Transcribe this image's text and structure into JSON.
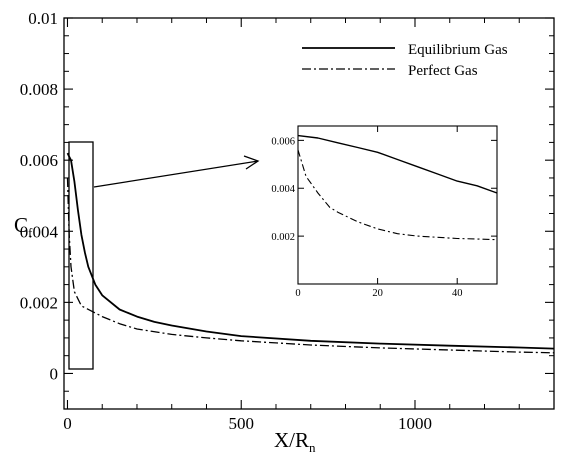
{
  "chart_data": {
    "type": "line",
    "xlabel": {
      "main": "X/R",
      "sub": "n"
    },
    "ylabel": {
      "main": "C",
      "sub": "f"
    },
    "xlim": [
      -10,
      1400
    ],
    "ylim": [
      -0.001,
      0.01
    ],
    "x_ticks": [
      0,
      500,
      1000
    ],
    "x_tick_labels": [
      "0",
      "500",
      "1000"
    ],
    "y_ticks": [
      0,
      0.002,
      0.004,
      0.006,
      0.008,
      0.01
    ],
    "y_tick_labels": [
      "0",
      "0.002",
      "0.004",
      "0.006",
      "0.008",
      "0.01"
    ],
    "grid": false,
    "legend_position": "top-right",
    "series": [
      {
        "name": "Equilibrium Gas",
        "style": "solid",
        "x": [
          0,
          5,
          10,
          20,
          30,
          40,
          50,
          60,
          80,
          100,
          150,
          200,
          250,
          300,
          400,
          500,
          700,
          900,
          1100,
          1300,
          1400
        ],
        "y": [
          0.0062,
          0.0061,
          0.006,
          0.0054,
          0.0046,
          0.0039,
          0.0034,
          0.003,
          0.0025,
          0.0022,
          0.0018,
          0.0016,
          0.00145,
          0.00135,
          0.00118,
          0.00105,
          0.00092,
          0.00084,
          0.00078,
          0.00073,
          0.0007
        ]
      },
      {
        "name": "Perfect Gas",
        "style": "dash-dot",
        "x": [
          0,
          2,
          5,
          10,
          20,
          30,
          40,
          50,
          80,
          100,
          150,
          200,
          300,
          400,
          500,
          700,
          900,
          1100,
          1300,
          1400
        ],
        "y": [
          0.0055,
          0.0048,
          0.0039,
          0.003,
          0.0023,
          0.0021,
          0.0019,
          0.00185,
          0.0017,
          0.0016,
          0.0014,
          0.00125,
          0.0011,
          0.001,
          0.00092,
          0.0008,
          0.00072,
          0.00066,
          0.0006,
          0.00058
        ]
      }
    ],
    "inset": {
      "xlim": [
        0,
        50
      ],
      "ylim": [
        0,
        0.0066
      ],
      "x_ticks": [
        0,
        20,
        40
      ],
      "x_tick_labels": [
        "0",
        "20",
        "40"
      ],
      "y_ticks": [
        0.002,
        0.004,
        0.006
      ],
      "y_tick_labels": [
        "0.002",
        "0.004",
        "0.006"
      ],
      "series": [
        {
          "name": "Equilibrium Gas",
          "style": "solid",
          "x": [
            0,
            5,
            10,
            15,
            20,
            25,
            30,
            35,
            40,
            45,
            50
          ],
          "y": [
            0.0062,
            0.0061,
            0.0059,
            0.0057,
            0.0055,
            0.0052,
            0.0049,
            0.0046,
            0.0043,
            0.0041,
            0.0038
          ]
        },
        {
          "name": "Perfect Gas",
          "style": "dash-dot",
          "x": [
            0,
            2,
            5,
            8,
            10,
            15,
            20,
            25,
            30,
            35,
            40,
            45,
            50
          ],
          "y": [
            0.0056,
            0.0045,
            0.0038,
            0.0032,
            0.003,
            0.0026,
            0.0023,
            0.0021,
            0.002,
            0.00195,
            0.0019,
            0.00188,
            0.00185
          ]
        }
      ]
    }
  }
}
